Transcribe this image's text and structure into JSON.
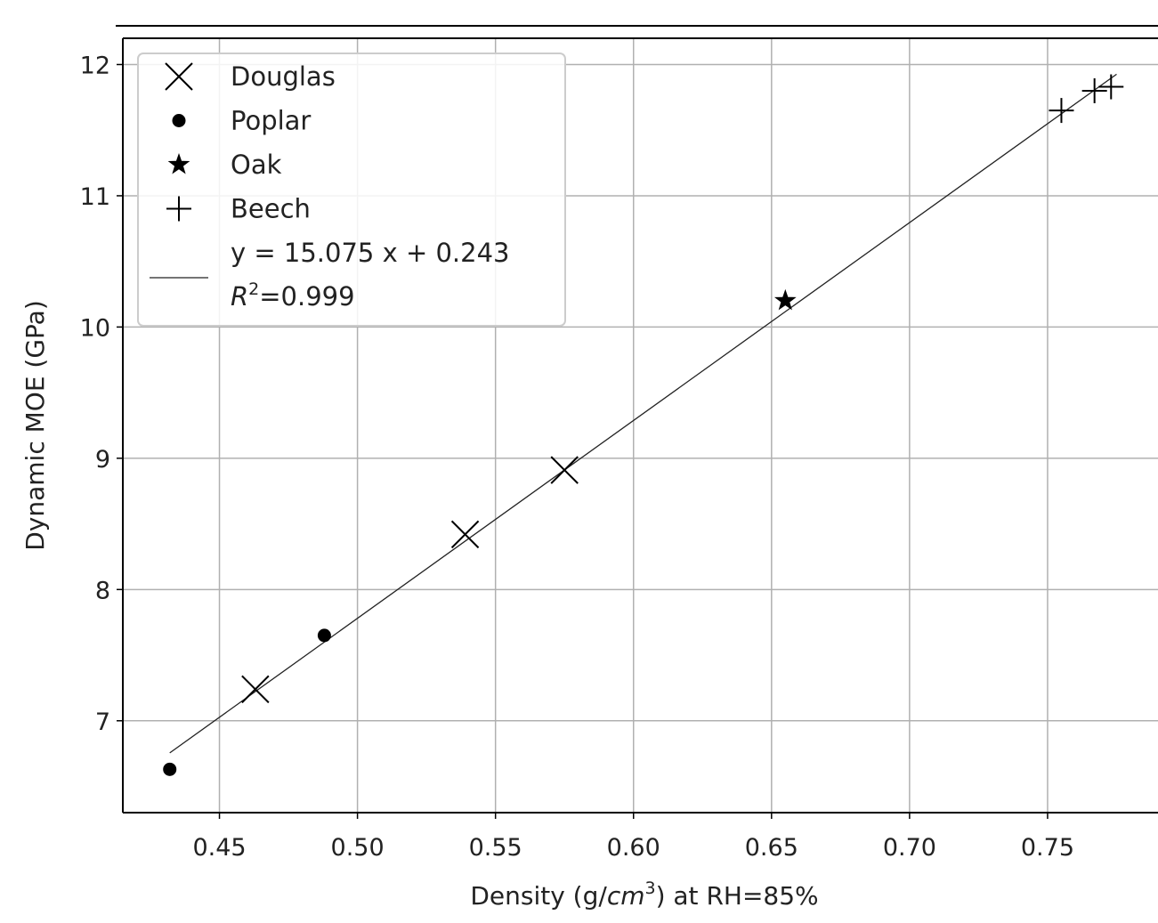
{
  "chart_data": {
    "type": "scatter",
    "xlabel_prefix": "Density (g/",
    "xlabel_unit": "cm",
    "xlabel_exp": "3",
    "xlabel_suffix": ") at RH=85%",
    "ylabel": "Dynamic MOE (GPa)",
    "xlim": [
      0.415,
      0.79
    ],
    "ylim": [
      6.3,
      12.2
    ],
    "xticks": [
      0.45,
      0.5,
      0.55,
      0.6,
      0.65,
      0.7,
      0.75
    ],
    "xtick_labels": [
      "0.45",
      "0.50",
      "0.55",
      "0.60",
      "0.65",
      "0.70",
      "0.75"
    ],
    "yticks": [
      7,
      8,
      9,
      10,
      11,
      12
    ],
    "ytick_labels": [
      "7",
      "8",
      "9",
      "10",
      "11",
      "12"
    ],
    "grid": true,
    "legend_position": "top-left",
    "series": [
      {
        "name": "Douglas",
        "marker": "x",
        "points": [
          [
            0.463,
            7.24
          ],
          [
            0.539,
            8.42
          ],
          [
            0.575,
            8.91
          ]
        ]
      },
      {
        "name": "Poplar",
        "marker": "dot",
        "points": [
          [
            0.432,
            6.63
          ],
          [
            0.488,
            7.65
          ]
        ]
      },
      {
        "name": "Oak",
        "marker": "star",
        "points": [
          [
            0.655,
            10.2
          ]
        ]
      },
      {
        "name": "Beech",
        "marker": "plus",
        "points": [
          [
            0.755,
            11.65
          ],
          [
            0.767,
            11.8
          ],
          [
            0.773,
            11.83
          ]
        ]
      }
    ],
    "fit": {
      "slope": 15.075,
      "intercept": 0.243,
      "x_range": [
        0.432,
        0.775
      ],
      "label_line1": "y = 15.075 x + 0.243",
      "label_r2_prefix": "R",
      "label_r2_exp": "2",
      "label_r2_suffix": "=0.999"
    }
  }
}
